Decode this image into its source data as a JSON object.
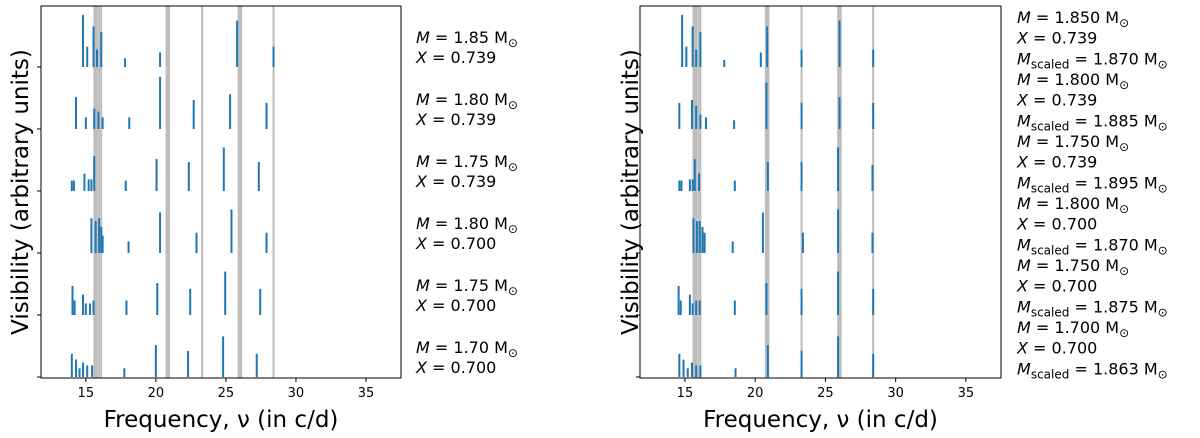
{
  "chart_data": [
    {
      "type": "bar",
      "xlabel": "Frequency, ν (in c/d)",
      "ylabel": "Visibility (arbitrary units)",
      "xlim": [
        11.8,
        37.5
      ],
      "xticks": [
        "15",
        "20",
        "25",
        "30",
        "35"
      ],
      "xtick_values": [
        15,
        20,
        25,
        30,
        35
      ],
      "observed_frequencies": [
        15.7,
        15.95,
        16.1,
        20.85,
        23.3,
        26.0,
        28.4
      ],
      "colors": {
        "bars": "#1f77b4",
        "observed": "#bdbdbd"
      },
      "models": [
        {
          "label_line1": {
            "var": "M",
            "eq": " = 1.85 M",
            "sub": "⊙"
          },
          "label_line2": {
            "var": "X",
            "eq": " = 0.739"
          },
          "freqs": [
            14.8,
            15.1,
            15.55,
            15.8,
            16.1,
            17.8,
            20.3,
            25.8,
            28.4
          ],
          "heights": [
            0.9,
            0.35,
            0.7,
            0.3,
            0.6,
            0.15,
            0.25,
            0.8,
            0.35
          ]
        },
        {
          "label_line1": {
            "var": "M",
            "eq": " = 1.80 M",
            "sub": "⊙"
          },
          "label_line2": {
            "var": "X",
            "eq": " = 0.739"
          },
          "freqs": [
            14.3,
            15.0,
            15.6,
            15.9,
            16.2,
            18.1,
            20.3,
            22.7,
            25.3,
            27.9
          ],
          "heights": [
            0.55,
            0.2,
            0.35,
            0.3,
            0.2,
            0.2,
            0.9,
            0.5,
            0.6,
            0.45
          ]
        },
        {
          "label_line1": {
            "var": "M",
            "eq": " = 1.75 M",
            "sub": "⊙"
          },
          "label_line2": {
            "var": "X",
            "eq": " = 0.739"
          },
          "freqs": [
            14.0,
            14.15,
            14.9,
            15.2,
            15.4,
            15.6,
            17.85,
            20.05,
            22.35,
            24.85,
            27.35
          ],
          "heights": [
            0.18,
            0.18,
            0.3,
            0.2,
            0.2,
            0.6,
            0.18,
            0.55,
            0.5,
            0.75,
            0.5
          ]
        },
        {
          "label_line1": {
            "var": "M",
            "eq": " = 1.80 M",
            "sub": "⊙"
          },
          "label_line2": {
            "var": "X",
            "eq": " = 0.700"
          },
          "freqs": [
            15.4,
            15.7,
            15.95,
            16.1,
            16.2,
            18.05,
            20.3,
            22.9,
            25.4,
            27.9
          ],
          "heights": [
            0.6,
            0.55,
            0.6,
            0.45,
            0.3,
            0.2,
            0.7,
            0.35,
            0.75,
            0.35
          ]
        },
        {
          "label_line1": {
            "var": "M",
            "eq": " = 1.75 M",
            "sub": "⊙"
          },
          "label_line2": {
            "var": "X",
            "eq": " = 0.700"
          },
          "freqs": [
            14.05,
            14.2,
            14.8,
            15.0,
            15.3,
            15.55,
            17.9,
            20.1,
            22.45,
            24.95,
            27.45
          ],
          "heights": [
            0.5,
            0.25,
            0.35,
            0.2,
            0.2,
            0.25,
            0.25,
            0.55,
            0.45,
            0.75,
            0.45
          ]
        },
        {
          "label_line1": {
            "var": "M",
            "eq": " = 1.70 M",
            "sub": "⊙"
          },
          "label_line2": {
            "var": "X",
            "eq": " = 0.700"
          },
          "freqs": [
            14.0,
            14.3,
            14.55,
            14.8,
            15.1,
            15.45,
            17.75,
            20.0,
            22.3,
            24.8,
            27.2
          ],
          "heights": [
            0.4,
            0.3,
            0.15,
            0.25,
            0.2,
            0.2,
            0.15,
            0.55,
            0.45,
            0.7,
            0.4
          ]
        }
      ]
    },
    {
      "type": "bar",
      "xlabel": "Frequency, ν (in c/d)",
      "ylabel": "Visibility (arbitrary units)",
      "xlim": [
        11.8,
        37.5
      ],
      "xticks": [
        "15",
        "20",
        "25",
        "30",
        "35"
      ],
      "xtick_values": [
        15,
        20,
        25,
        30,
        35
      ],
      "observed_frequencies": [
        15.7,
        15.95,
        16.1,
        20.85,
        23.3,
        26.0,
        28.4
      ],
      "colors": {
        "bars": "#1f77b4",
        "observed": "#bdbdbd"
      },
      "models": [
        {
          "label_line1": {
            "var": "M",
            "eq": " = 1.850 M",
            "sub": "⊙"
          },
          "label_line2": {
            "var": "X",
            "eq": " = 0.739"
          },
          "label_line3": {
            "var": "M",
            "varsub": "scaled",
            "eq": " = 1.870 M",
            "sub": "⊙"
          },
          "freqs": [
            14.8,
            15.1,
            15.55,
            15.8,
            16.1,
            17.8,
            20.4,
            20.85,
            23.3,
            26.0,
            28.4
          ],
          "heights": [
            0.9,
            0.35,
            0.7,
            0.3,
            0.6,
            0.12,
            0.25,
            0.7,
            0.3,
            0.8,
            0.3
          ]
        },
        {
          "label_line1": {
            "var": "M",
            "eq": " = 1.800 M",
            "sub": "⊙"
          },
          "label_line2": {
            "var": "X",
            "eq": " = 0.739"
          },
          "label_line3": {
            "var": "M",
            "varsub": "scaled",
            "eq": " = 1.885 M",
            "sub": "⊙"
          },
          "freqs": [
            14.6,
            15.5,
            15.8,
            16.1,
            16.5,
            18.5,
            20.8,
            23.3,
            26.0,
            28.4
          ],
          "heights": [
            0.45,
            0.5,
            0.4,
            0.25,
            0.2,
            0.15,
            0.8,
            0.45,
            0.55,
            0.45
          ]
        },
        {
          "label_line1": {
            "var": "M",
            "eq": " = 1.750 M",
            "sub": "⊙"
          },
          "label_line2": {
            "var": "X",
            "eq": " = 0.739"
          },
          "label_line3": {
            "var": "M",
            "varsub": "scaled",
            "eq": " = 1.895 M",
            "sub": "⊙"
          },
          "freqs": [
            14.6,
            14.75,
            15.35,
            15.55,
            15.7,
            16.0,
            18.55,
            20.9,
            23.3,
            25.9,
            28.35
          ],
          "heights": [
            0.18,
            0.18,
            0.2,
            0.2,
            0.55,
            0.3,
            0.18,
            0.5,
            0.5,
            0.75,
            0.45
          ]
        },
        {
          "label_line1": {
            "var": "M",
            "eq": " = 1.800 M",
            "sub": "⊙"
          },
          "label_line2": {
            "var": "X",
            "eq": " = 0.700"
          },
          "label_line3": {
            "var": "M",
            "varsub": "scaled",
            "eq": " = 1.870 M",
            "sub": "⊙"
          },
          "freqs": [
            15.6,
            15.85,
            16.05,
            16.25,
            16.4,
            18.4,
            20.55,
            23.4,
            25.9,
            28.35
          ],
          "heights": [
            0.6,
            0.55,
            0.55,
            0.45,
            0.35,
            0.2,
            0.7,
            0.35,
            0.75,
            0.35
          ]
        },
        {
          "label_line1": {
            "var": "M",
            "eq": " = 1.750 M",
            "sub": "⊙"
          },
          "label_line2": {
            "var": "X",
            "eq": " = 0.700"
          },
          "label_line3": {
            "var": "M",
            "varsub": "scaled",
            "eq": " = 1.875 M",
            "sub": "⊙"
          },
          "freqs": [
            14.55,
            14.7,
            15.35,
            15.55,
            15.8,
            16.05,
            18.55,
            20.8,
            23.3,
            25.9,
            28.4
          ],
          "heights": [
            0.5,
            0.25,
            0.35,
            0.2,
            0.25,
            0.25,
            0.25,
            0.55,
            0.45,
            0.75,
            0.45
          ]
        },
        {
          "label_line1": {
            "var": "M",
            "eq": " = 1.700 M",
            "sub": "⊙"
          },
          "label_line2": {
            "var": "X",
            "eq": " = 0.700"
          },
          "label_line3": {
            "var": "M",
            "varsub": "scaled",
            "eq": " = 1.863 M",
            "sub": "⊙"
          },
          "freqs": [
            14.6,
            14.9,
            15.2,
            15.5,
            15.8,
            16.1,
            18.6,
            20.9,
            23.3,
            25.9,
            28.4
          ],
          "heights": [
            0.4,
            0.3,
            0.15,
            0.25,
            0.2,
            0.2,
            0.15,
            0.55,
            0.45,
            0.7,
            0.4
          ]
        }
      ]
    }
  ]
}
